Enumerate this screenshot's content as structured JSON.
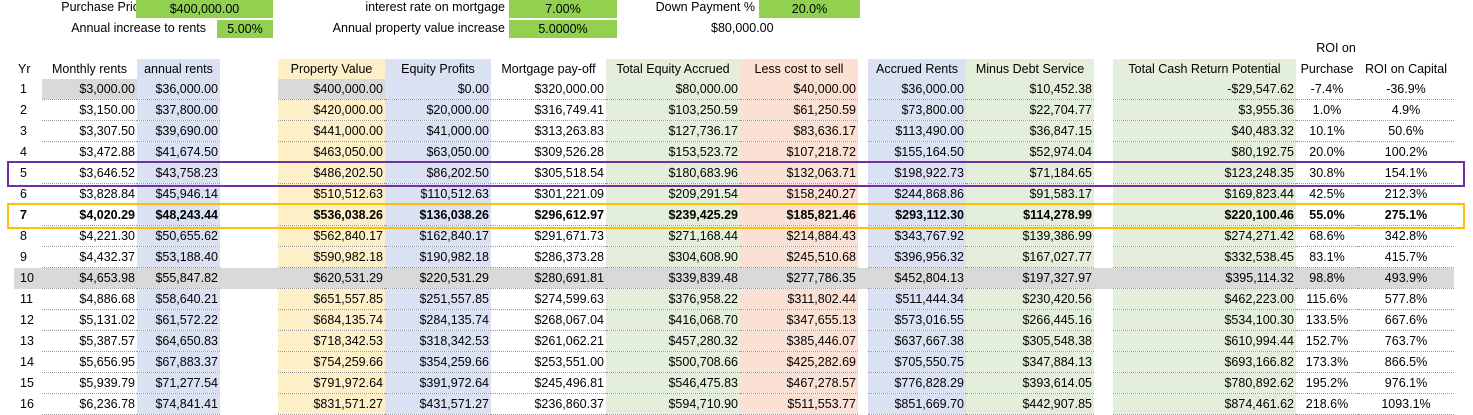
{
  "inputs": {
    "purchase_price": {
      "label": "Purchase Price",
      "value": "$400,000.00"
    },
    "rent_increase": {
      "label": "Annual increase to rents",
      "value": "5.00%"
    },
    "interest_rate": {
      "label": "interest rate on mortgage",
      "value": "7.00%"
    },
    "property_increase": {
      "label": "Annual property value increase",
      "value": "5.0000%"
    },
    "down_payment": {
      "label": "Down Payment %",
      "value": "20.0%",
      "amount": "$80,000.00"
    }
  },
  "table": {
    "roi_top": "ROI on",
    "headers": [
      "Yr",
      "Monthly rents",
      "annual rents",
      "",
      "Property Value",
      "Equity Profits",
      "Mortgage pay-off",
      "Total Equity Accrued",
      "Less cost to sell",
      "",
      "Accrued Rents",
      "Minus Debt Service",
      "",
      "Total Cash Return Potential",
      "Purchase",
      "ROI on Capital"
    ],
    "rows": [
      [
        "1",
        "$3,000.00",
        "$36,000.00",
        "",
        "$400,000.00",
        "$0.00",
        "$320,000.00",
        "$80,000.00",
        "$40,000.00",
        "",
        "$36,000.00",
        "$10,452.38",
        "",
        "-$29,547.62",
        "-7.4%",
        "-36.9%"
      ],
      [
        "2",
        "$3,150.00",
        "$37,800.00",
        "",
        "$420,000.00",
        "$20,000.00",
        "$316,749.41",
        "$103,250.59",
        "$61,250.59",
        "",
        "$73,800.00",
        "$22,704.77",
        "",
        "$3,955.36",
        "1.0%",
        "4.9%"
      ],
      [
        "3",
        "$3,307.50",
        "$39,690.00",
        "",
        "$441,000.00",
        "$41,000.00",
        "$313,263.83",
        "$127,736.17",
        "$83,636.17",
        "",
        "$113,490.00",
        "$36,847.15",
        "",
        "$40,483.32",
        "10.1%",
        "50.6%"
      ],
      [
        "4",
        "$3,472.88",
        "$41,674.50",
        "",
        "$463,050.00",
        "$63,050.00",
        "$309,526.28",
        "$153,523.72",
        "$107,218.72",
        "",
        "$155,164.50",
        "$52,974.04",
        "",
        "$80,192.75",
        "20.0%",
        "100.2%"
      ],
      [
        "5",
        "$3,646.52",
        "$43,758.23",
        "",
        "$486,202.50",
        "$86,202.50",
        "$305,518.54",
        "$180,683.96",
        "$132,063.71",
        "",
        "$198,922.73",
        "$71,184.65",
        "",
        "$123,248.35",
        "30.8%",
        "154.1%"
      ],
      [
        "6",
        "$3,828.84",
        "$45,946.14",
        "",
        "$510,512.63",
        "$110,512.63",
        "$301,221.09",
        "$209,291.54",
        "$158,240.27",
        "",
        "$244,868.86",
        "$91,583.17",
        "",
        "$169,823.44",
        "42.5%",
        "212.3%"
      ],
      [
        "7",
        "$4,020.29",
        "$48,243.44",
        "",
        "$536,038.26",
        "$136,038.26",
        "$296,612.97",
        "$239,425.29",
        "$185,821.46",
        "",
        "$293,112.30",
        "$114,278.99",
        "",
        "$220,100.46",
        "55.0%",
        "275.1%"
      ],
      [
        "8",
        "$4,221.30",
        "$50,655.62",
        "",
        "$562,840.17",
        "$162,840.17",
        "$291,671.73",
        "$271,168.44",
        "$214,884.43",
        "",
        "$343,767.92",
        "$139,386.99",
        "",
        "$274,271.42",
        "68.6%",
        "342.8%"
      ],
      [
        "9",
        "$4,432.37",
        "$53,188.40",
        "",
        "$590,982.18",
        "$190,982.18",
        "$286,373.28",
        "$304,608.90",
        "$245,510.68",
        "",
        "$396,956.32",
        "$167,027.77",
        "",
        "$332,538.45",
        "83.1%",
        "415.7%"
      ],
      [
        "10",
        "$4,653.98",
        "$55,847.82",
        "",
        "$620,531.29",
        "$220,531.29",
        "$280,691.81",
        "$339,839.48",
        "$277,786.35",
        "",
        "$452,804.13",
        "$197,327.97",
        "",
        "$395,114.32",
        "98.8%",
        "493.9%"
      ],
      [
        "11",
        "$4,886.68",
        "$58,640.21",
        "",
        "$651,557.85",
        "$251,557.85",
        "$274,599.63",
        "$376,958.22",
        "$311,802.44",
        "",
        "$511,444.34",
        "$230,420.56",
        "",
        "$462,223.00",
        "115.6%",
        "577.8%"
      ],
      [
        "12",
        "$5,131.02",
        "$61,572.22",
        "",
        "$684,135.74",
        "$284,135.74",
        "$268,067.04",
        "$416,068.70",
        "$347,655.13",
        "",
        "$573,016.55",
        "$266,445.16",
        "",
        "$534,100.30",
        "133.5%",
        "667.6%"
      ],
      [
        "13",
        "$5,387.57",
        "$64,650.83",
        "",
        "$718,342.53",
        "$318,342.53",
        "$261,062.21",
        "$457,280.32",
        "$385,446.07",
        "",
        "$637,667.38",
        "$305,548.38",
        "",
        "$610,994.44",
        "152.7%",
        "763.7%"
      ],
      [
        "14",
        "$5,656.95",
        "$67,883.37",
        "",
        "$754,259.66",
        "$354,259.66",
        "$253,551.00",
        "$500,708.66",
        "$425,282.69",
        "",
        "$705,550.75",
        "$347,884.13",
        "",
        "$693,166.82",
        "173.3%",
        "866.5%"
      ],
      [
        "15",
        "$5,939.79",
        "$71,277.54",
        "",
        "$791,972.64",
        "$391,972.64",
        "$245,496.81",
        "$546,475.83",
        "$467,278.57",
        "",
        "$776,828.29",
        "$393,614.05",
        "",
        "$780,892.62",
        "195.2%",
        "976.1%"
      ],
      [
        "16",
        "$6,236.78",
        "$74,841.41",
        "",
        "$831,571.27",
        "$431,571.27",
        "$236,860.37",
        "$594,710.90",
        "$511,553.77",
        "",
        "$851,669.70",
        "$442,907.85",
        "",
        "$874,461.62",
        "218.6%",
        "1093.1%"
      ]
    ]
  },
  "highlight_colors": {
    "row5": "#7030a0",
    "row7": "#ffc000"
  }
}
